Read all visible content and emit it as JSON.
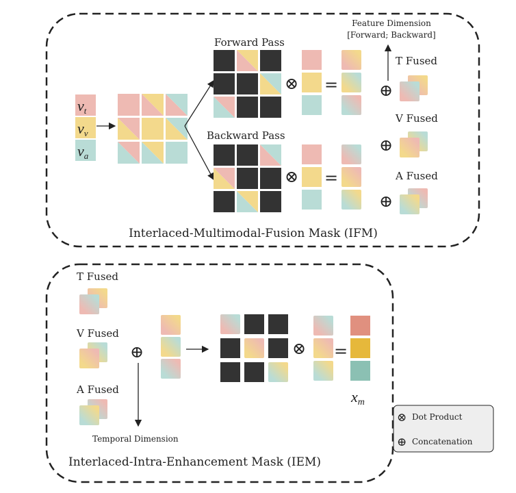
{
  "colors": {
    "t": "#eebab3",
    "v": "#f3d98c",
    "a": "#b9dcd6",
    "dark": "#333333",
    "xm_t": "#e0907f",
    "xm_v": "#e6b83b",
    "xm_a": "#8bc0b3"
  },
  "ifm": {
    "title": "Interlaced-Multimodal-Fusion Mask (IFM)",
    "inputs": [
      {
        "sym": "v",
        "sub": "t",
        "color": "t"
      },
      {
        "sym": "v",
        "sub": "v",
        "color": "v"
      },
      {
        "sym": "v",
        "sub": "a",
        "color": "a"
      }
    ],
    "input_grid": [
      [
        "t",
        "tv",
        "ta"
      ],
      [
        "vt",
        "v",
        "va"
      ],
      [
        "at",
        "av",
        "a"
      ]
    ],
    "forward_label": "Forward Pass",
    "forward_grid": [
      [
        "D",
        "tv",
        "D"
      ],
      [
        "D",
        "D",
        "va"
      ],
      [
        "at",
        "D",
        "D"
      ]
    ],
    "forward_column": [
      "t",
      "v",
      "a"
    ],
    "forward_result": [
      "gtv",
      "gva",
      "gat"
    ],
    "backward_label": "Backward Pass",
    "backward_grid": [
      [
        "D",
        "D",
        "ta"
      ],
      [
        "vt",
        "D",
        "D"
      ],
      [
        "D",
        "av",
        "D"
      ]
    ],
    "backward_column": [
      "t",
      "v",
      "a"
    ],
    "backward_result": [
      "gta",
      "gvt",
      "gav"
    ],
    "feature_dim_line1": "Feature Dimension",
    "feature_dim_line2": "[Forward; Backward]",
    "fused": [
      {
        "label": "T Fused",
        "back": "gtv",
        "front": "gta"
      },
      {
        "label": "V Fused",
        "back": "gva",
        "front": "gvt"
      },
      {
        "label": "A Fused",
        "back": "gat",
        "front": "gav"
      }
    ]
  },
  "iem": {
    "title": "Interlaced-Intra-Enhancement Mask (IEM)",
    "fused": [
      {
        "label": "T Fused",
        "back": "gtv",
        "front": "gta"
      },
      {
        "label": "V Fused",
        "back": "gva",
        "front": "gvt"
      },
      {
        "label": "A Fused",
        "back": "gat",
        "front": "gav"
      }
    ],
    "temporal_label": "Temporal Dimension",
    "column": [
      "gtv",
      "gva",
      "gat"
    ],
    "grid": [
      [
        "gta",
        "D",
        "D"
      ],
      [
        "D",
        "gvt",
        "D"
      ],
      [
        "D",
        "D",
        "gav"
      ]
    ],
    "column2": [
      "gta",
      "gvt",
      "gav"
    ],
    "output": [
      "xm_t",
      "xm_v",
      "xm_a"
    ],
    "output_sym": "x",
    "output_sub": "m"
  },
  "legend": {
    "dot_symbol": "⊗",
    "dot_label": "Dot Product",
    "concat_symbol": "⊕",
    "concat_label": "Concatenation"
  },
  "symbols": {
    "dot": "⊗",
    "concat": "⊕",
    "equals": "="
  }
}
